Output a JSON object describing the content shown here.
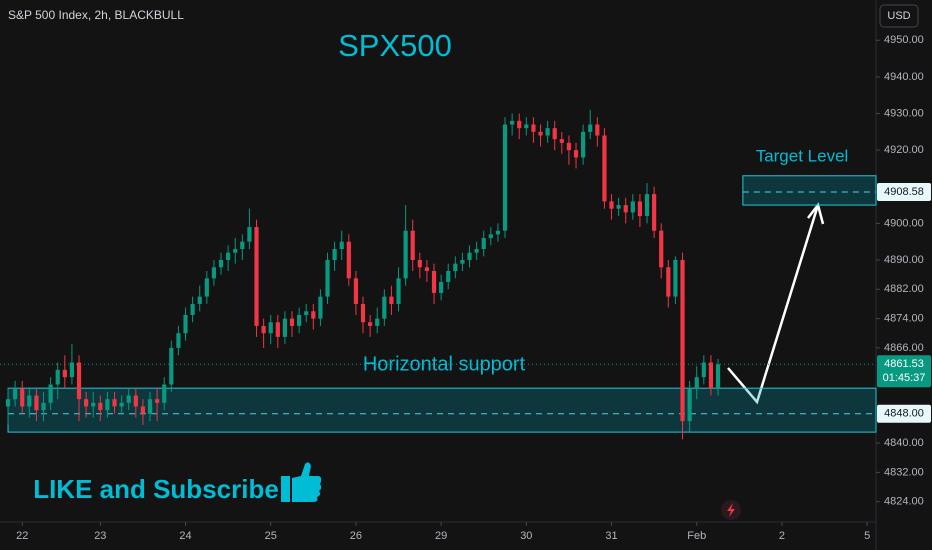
{
  "chart_data": {
    "type": "candlestick",
    "title": "SPX500",
    "subtitle": "S&P 500 Index, 2h, BLACKBULL",
    "currency": "USD",
    "annotation": "LIKE and Subscribe",
    "up_color": "#089981",
    "down_color": "#f23645",
    "open": [
      4850,
      4852,
      4855,
      4850,
      4853,
      4849,
      4851,
      4856,
      4860,
      4858,
      4862,
      4852,
      4850,
      4851,
      4849,
      4852,
      4850,
      4851,
      4853,
      4850,
      4848,
      4852,
      4851,
      4856,
      4866,
      4870,
      4875,
      4878,
      4880,
      4885,
      4888,
      4890,
      4892,
      4893,
      4895,
      4899,
      4872,
      4870,
      4873,
      4869,
      4874,
      4872,
      4875,
      4876,
      4874,
      4880,
      4890,
      4893,
      4895,
      4885,
      4878,
      4873,
      4872,
      4874,
      4880,
      4878,
      4885,
      4898,
      4890,
      4888,
      4887,
      4881,
      4884,
      4887,
      4889,
      4890,
      4892,
      4893,
      4896,
      4897,
      4898,
      4927,
      4928,
      4926,
      4927,
      4925,
      4924,
      4926,
      4923,
      4922,
      4920,
      4918,
      4925,
      4927,
      4924,
      4906,
      4904,
      4905,
      4903,
      4906,
      4902,
      4908,
      4898,
      4888,
      4880,
      4890,
      4846,
      4855,
      4858,
      4862,
      4855
    ],
    "high": [
      4855,
      4857,
      4857,
      4855,
      4855,
      4854,
      4858,
      4862,
      4864,
      4867,
      4864,
      4854,
      4854,
      4853,
      4854,
      4854,
      4853,
      4855,
      4855,
      4852,
      4854,
      4855,
      4858,
      4868,
      4872,
      4877,
      4880,
      4883,
      4887,
      4890,
      4892,
      4894,
      4896,
      4897,
      4904,
      4901,
      4874,
      4875,
      4875,
      4876,
      4876,
      4877,
      4878,
      4878,
      4882,
      4892,
      4895,
      4898,
      4897,
      4887,
      4880,
      4875,
      4877,
      4882,
      4883,
      4888,
      4905,
      4901,
      4892,
      4890,
      4889,
      4886,
      4889,
      4891,
      4892,
      4894,
      4895,
      4898,
      4899,
      4900,
      4929,
      4930,
      4930,
      4929,
      4929,
      4927,
      4928,
      4928,
      4925,
      4924,
      4922,
      4927,
      4931,
      4929,
      4926,
      4908,
      4907,
      4907,
      4908,
      4908,
      4911,
      4910,
      4900,
      4890,
      4891,
      4892,
      4857,
      4861,
      4864,
      4864,
      4863
    ],
    "low": [
      4845,
      4850,
      4848,
      4847,
      4846,
      4846,
      4849,
      4852,
      4855,
      4856,
      4846,
      4847,
      4847,
      4846,
      4847,
      4848,
      4848,
      4849,
      4847,
      4845,
      4846,
      4846,
      4849,
      4854,
      4864,
      4868,
      4873,
      4876,
      4878,
      4883,
      4886,
      4887,
      4889,
      4890,
      4893,
      4869,
      4866,
      4867,
      4866,
      4867,
      4869,
      4870,
      4873,
      4871,
      4872,
      4878,
      4887,
      4890,
      4883,
      4875,
      4870,
      4869,
      4870,
      4872,
      4875,
      4876,
      4883,
      4887,
      4885,
      4884,
      4878,
      4879,
      4882,
      4885,
      4887,
      4888,
      4890,
      4891,
      4894,
      4895,
      4896,
      4924,
      4923,
      4924,
      4922,
      4921,
      4922,
      4920,
      4919,
      4916,
      4915,
      4916,
      4923,
      4921,
      4904,
      4901,
      4902,
      4900,
      4901,
      4899,
      4900,
      4896,
      4885,
      4877,
      4878,
      4841,
      4843,
      4852,
      4856,
      4853,
      4853
    ],
    "close": [
      4852,
      4855,
      4850,
      4853,
      4849,
      4851,
      4856,
      4860,
      4858,
      4862,
      4852,
      4850,
      4851,
      4849,
      4852,
      4850,
      4851,
      4853,
      4850,
      4848,
      4852,
      4851,
      4856,
      4866,
      4870,
      4875,
      4878,
      4880,
      4885,
      4888,
      4890,
      4892,
      4893,
      4895,
      4899,
      4872,
      4870,
      4873,
      4869,
      4874,
      4872,
      4875,
      4876,
      4874,
      4880,
      4890,
      4893,
      4895,
      4885,
      4878,
      4873,
      4872,
      4874,
      4880,
      4878,
      4885,
      4898,
      4890,
      4888,
      4887,
      4881,
      4884,
      4887,
      4889,
      4890,
      4892,
      4893,
      4896,
      4897,
      4898,
      4927,
      4928,
      4926,
      4927,
      4925,
      4924,
      4926,
      4923,
      4922,
      4920,
      4918,
      4925,
      4927,
      4924,
      4906,
      4904,
      4905,
      4903,
      4906,
      4902,
      4908,
      4898,
      4888,
      4880,
      4890,
      4846,
      4855,
      4858,
      4862,
      4855,
      4861.53
    ],
    "ylim": [
      4819,
      4961
    ],
    "yticks": [
      {
        "value": 4950,
        "label": "4950.00"
      },
      {
        "value": 4940,
        "label": "4940.00"
      },
      {
        "value": 4930,
        "label": "4930.00"
      },
      {
        "value": 4920,
        "label": "4920.00"
      },
      {
        "value": 4900,
        "label": "4900.00"
      },
      {
        "value": 4890,
        "label": "4890.00"
      },
      {
        "value": 4882,
        "label": "4882.00"
      },
      {
        "value": 4874,
        "label": "4874.00"
      },
      {
        "value": 4866,
        "label": "4866.00"
      },
      {
        "value": 4840,
        "label": "4840.00"
      },
      {
        "value": 4832,
        "label": "4832.00"
      },
      {
        "value": 4824,
        "label": "4824.00"
      }
    ],
    "xlim": [
      -1.13,
      122.25
    ],
    "xticks": [
      {
        "value": 2,
        "label": "22"
      },
      {
        "value": 13,
        "label": "23"
      },
      {
        "value": 25,
        "label": "24"
      },
      {
        "value": 37,
        "label": "25"
      },
      {
        "value": 49,
        "label": "26"
      },
      {
        "value": 61,
        "label": "29"
      },
      {
        "value": 73,
        "label": "30"
      },
      {
        "value": 85,
        "label": "31"
      },
      {
        "value": 97,
        "label": "Feb"
      },
      {
        "value": 109,
        "label": "2"
      },
      {
        "value": 121,
        "label": "5"
      }
    ],
    "zones": [
      {
        "name": "Horizontal support",
        "x_start": 0,
        "low": 4843,
        "high": 4855,
        "level": {
          "value": 4848,
          "label": "4848.00"
        }
      },
      {
        "name": "Target Level",
        "x_start": 103.5,
        "low": 4905,
        "high": 4913,
        "level": 4908.58
      }
    ],
    "last_price": 4861.53,
    "countdown": "01:45:37"
  }
}
